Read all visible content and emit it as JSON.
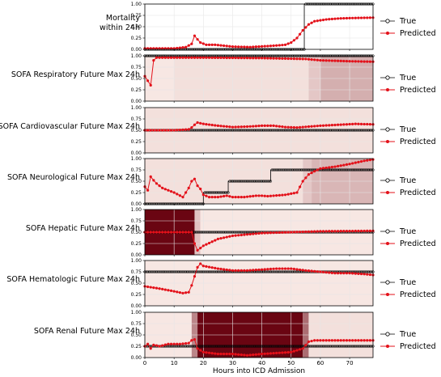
{
  "chart_data": {
    "type": "line",
    "xlabel": "Hours into ICD Admission",
    "xlim": [
      0,
      78
    ],
    "xticks": [
      0,
      10,
      20,
      30,
      40,
      50,
      60,
      70
    ],
    "ylim": [
      0,
      1
    ],
    "yticks": [
      "0.00",
      "0.25",
      "0.50",
      "0.75",
      "1.00"
    ],
    "legend": {
      "true_label": "True",
      "pred_label": "Predicted",
      "placement": "right"
    },
    "colors": {
      "true": "#000000",
      "pred": "#e3111a",
      "heat_low": "#fff3ee",
      "heat_high": "#67000d"
    },
    "panels": [
      {
        "title_lines": [
          "Mortality",
          "within 24h"
        ],
        "true": [
          [
            0,
            0
          ],
          [
            54.5,
            0
          ],
          [
            54.5,
            1
          ],
          [
            78,
            1
          ]
        ],
        "pred": [
          [
            0,
            0.02
          ],
          [
            10,
            0.02
          ],
          [
            14,
            0.05
          ],
          [
            16,
            0.12
          ],
          [
            17,
            0.3
          ],
          [
            18,
            0.22
          ],
          [
            19,
            0.15
          ],
          [
            21,
            0.1
          ],
          [
            24,
            0.1
          ],
          [
            27,
            0.08
          ],
          [
            30,
            0.06
          ],
          [
            36,
            0.05
          ],
          [
            44,
            0.08
          ],
          [
            48,
            0.1
          ],
          [
            50,
            0.15
          ],
          [
            52,
            0.25
          ],
          [
            54,
            0.42
          ],
          [
            56,
            0.55
          ],
          [
            58,
            0.62
          ],
          [
            62,
            0.66
          ],
          [
            66,
            0.68
          ],
          [
            70,
            0.69
          ],
          [
            78,
            0.7
          ]
        ],
        "heat": []
      },
      {
        "title_lines": [
          "SOFA Respiratory Future Max 24h"
        ],
        "true": [
          [
            0,
            1
          ],
          [
            78,
            1
          ]
        ],
        "pred": [
          [
            0,
            0.55
          ],
          [
            1,
            0.45
          ],
          [
            2,
            0.35
          ],
          [
            3,
            0.9
          ],
          [
            4,
            0.96
          ],
          [
            6,
            0.96
          ],
          [
            20,
            0.96
          ],
          [
            40,
            0.95
          ],
          [
            55,
            0.93
          ],
          [
            60,
            0.9
          ],
          [
            70,
            0.88
          ],
          [
            78,
            0.87
          ]
        ],
        "heat": [
          [
            0,
            10,
            0.05
          ],
          [
            10,
            56,
            0.08
          ],
          [
            56,
            60,
            0.18
          ],
          [
            60,
            78,
            0.28
          ]
        ]
      },
      {
        "title_lines": [
          "SOFA Cardiovascular Future Max 24h"
        ],
        "true": [
          [
            0,
            0.5
          ],
          [
            78,
            0.5
          ]
        ],
        "pred": [
          [
            0,
            0.5
          ],
          [
            10,
            0.5
          ],
          [
            15,
            0.52
          ],
          [
            16,
            0.56
          ],
          [
            17,
            0.62
          ],
          [
            18,
            0.67
          ],
          [
            20,
            0.64
          ],
          [
            25,
            0.6
          ],
          [
            30,
            0.57
          ],
          [
            35,
            0.58
          ],
          [
            40,
            0.6
          ],
          [
            44,
            0.6
          ],
          [
            48,
            0.57
          ],
          [
            52,
            0.56
          ],
          [
            56,
            0.58
          ],
          [
            60,
            0.6
          ],
          [
            66,
            0.62
          ],
          [
            72,
            0.64
          ],
          [
            78,
            0.63
          ]
        ],
        "heat": [
          [
            0,
            78,
            0.08
          ]
        ]
      },
      {
        "title_lines": [
          "SOFA Neurological Future Max 24h"
        ],
        "true": [
          [
            0,
            0
          ],
          [
            20,
            0
          ],
          [
            20,
            0.25
          ],
          [
            28.5,
            0.25
          ],
          [
            28.5,
            0.5
          ],
          [
            43,
            0.5
          ],
          [
            43,
            0.75
          ],
          [
            78,
            0.75
          ]
        ],
        "pred": [
          [
            0,
            0.38
          ],
          [
            1,
            0.3
          ],
          [
            2,
            0.6
          ],
          [
            3,
            0.52
          ],
          [
            4,
            0.45
          ],
          [
            6,
            0.35
          ],
          [
            8,
            0.3
          ],
          [
            10,
            0.25
          ],
          [
            13,
            0.15
          ],
          [
            15,
            0.35
          ],
          [
            16,
            0.5
          ],
          [
            17,
            0.55
          ],
          [
            18,
            0.4
          ],
          [
            19,
            0.33
          ],
          [
            20,
            0.2
          ],
          [
            22,
            0.15
          ],
          [
            25,
            0.15
          ],
          [
            28,
            0.18
          ],
          [
            30,
            0.15
          ],
          [
            34,
            0.15
          ],
          [
            38,
            0.18
          ],
          [
            40,
            0.18
          ],
          [
            42,
            0.17
          ],
          [
            48,
            0.2
          ],
          [
            52,
            0.25
          ],
          [
            54,
            0.5
          ],
          [
            56,
            0.65
          ],
          [
            58,
            0.72
          ],
          [
            60,
            0.78
          ],
          [
            65,
            0.82
          ],
          [
            70,
            0.88
          ],
          [
            75,
            0.95
          ],
          [
            78,
            0.98
          ]
        ],
        "heat": [
          [
            0,
            54,
            0.08
          ],
          [
            54,
            57,
            0.18
          ],
          [
            57,
            78,
            0.25
          ]
        ]
      },
      {
        "title_lines": [
          "SOFA Hepatic Future Max 24h"
        ],
        "true": [
          [
            0,
            0.5
          ],
          [
            78,
            0.5
          ]
        ],
        "pred": [
          [
            0,
            0.5
          ],
          [
            10,
            0.5
          ],
          [
            16,
            0.5
          ],
          [
            17,
            0.25
          ],
          [
            18,
            0.1
          ],
          [
            20,
            0.2
          ],
          [
            25,
            0.35
          ],
          [
            30,
            0.42
          ],
          [
            40,
            0.48
          ],
          [
            50,
            0.5
          ],
          [
            60,
            0.52
          ],
          [
            78,
            0.53
          ]
        ],
        "heat": [
          [
            0,
            17,
            0.98
          ],
          [
            17,
            19,
            0.2
          ],
          [
            19,
            78,
            0.05
          ]
        ]
      },
      {
        "title_lines": [
          "SOFA Hematologic Future Max 24h"
        ],
        "true": [
          [
            0,
            0.75
          ],
          [
            78,
            0.75
          ]
        ],
        "pred": [
          [
            0,
            0.43
          ],
          [
            5,
            0.38
          ],
          [
            10,
            0.32
          ],
          [
            13,
            0.28
          ],
          [
            15,
            0.3
          ],
          [
            16,
            0.45
          ],
          [
            17,
            0.65
          ],
          [
            18,
            0.85
          ],
          [
            19,
            0.93
          ],
          [
            20,
            0.88
          ],
          [
            25,
            0.82
          ],
          [
            30,
            0.78
          ],
          [
            35,
            0.78
          ],
          [
            40,
            0.8
          ],
          [
            45,
            0.82
          ],
          [
            50,
            0.82
          ],
          [
            55,
            0.78
          ],
          [
            60,
            0.75
          ],
          [
            65,
            0.72
          ],
          [
            70,
            0.72
          ],
          [
            75,
            0.7
          ],
          [
            78,
            0.68
          ]
        ],
        "heat": [
          [
            0,
            78,
            0.05
          ]
        ]
      },
      {
        "title_lines": [
          "SOFA Renal Future Max 24h"
        ],
        "true": [
          [
            0,
            0.25
          ],
          [
            78,
            0.25
          ]
        ],
        "pred": [
          [
            0,
            0.25
          ],
          [
            1,
            0.3
          ],
          [
            2,
            0.2
          ],
          [
            3,
            0.28
          ],
          [
            5,
            0.25
          ],
          [
            8,
            0.3
          ],
          [
            12,
            0.3
          ],
          [
            15,
            0.32
          ],
          [
            16,
            0.38
          ],
          [
            17,
            0.4
          ],
          [
            18,
            0.2
          ],
          [
            20,
            0.12
          ],
          [
            25,
            0.08
          ],
          [
            30,
            0.08
          ],
          [
            35,
            0.05
          ],
          [
            40,
            0.08
          ],
          [
            45,
            0.1
          ],
          [
            50,
            0.12
          ],
          [
            54,
            0.2
          ],
          [
            56,
            0.35
          ],
          [
            58,
            0.38
          ],
          [
            65,
            0.38
          ],
          [
            78,
            0.38
          ]
        ],
        "heat": [
          [
            0,
            16,
            0.05
          ],
          [
            16,
            18,
            0.45
          ],
          [
            18,
            54,
            0.98
          ],
          [
            54,
            56,
            0.55
          ],
          [
            56,
            78,
            0.08
          ]
        ]
      }
    ]
  }
}
